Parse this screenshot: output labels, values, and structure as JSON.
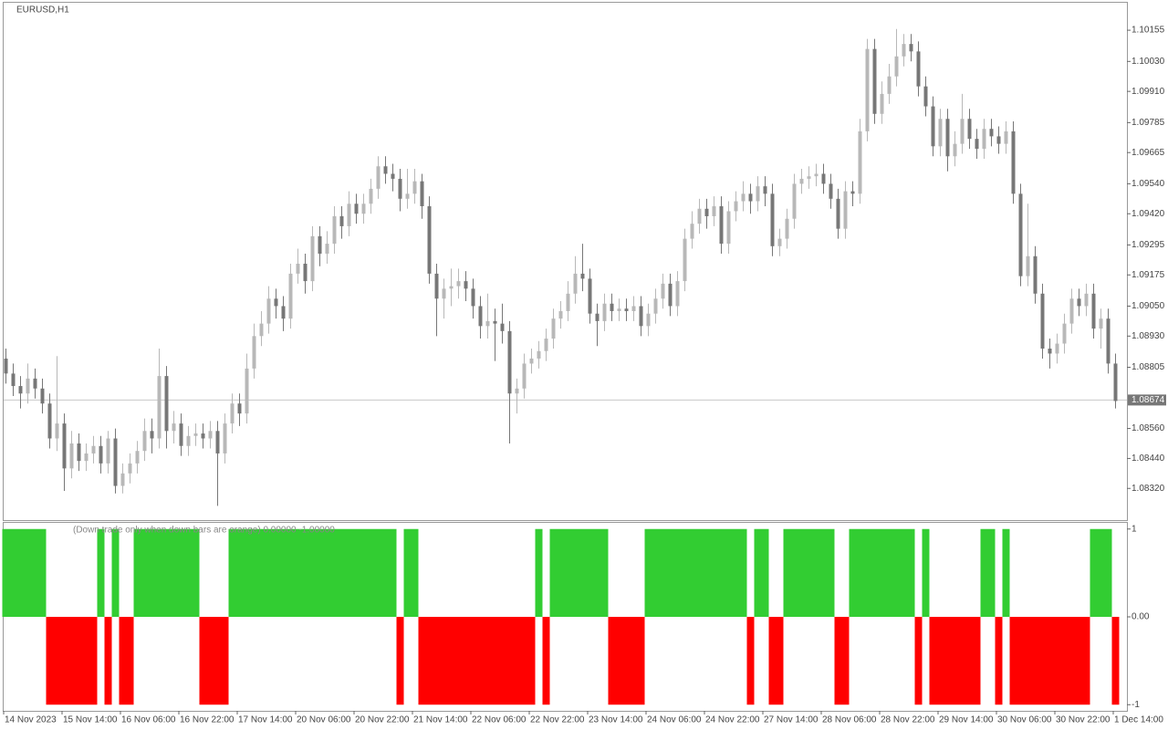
{
  "chart_data": [
    {
      "type": "candlestick",
      "title": "EURUSD,H1",
      "open": [
        1.0884,
        1.0878,
        1.0873,
        1.087,
        1.0876,
        1.0872,
        1.0866,
        1.0852,
        1.0858,
        1.084,
        1.085,
        1.0843,
        1.0846,
        1.0849,
        1.0842,
        1.0852,
        1.0833,
        1.0838,
        1.0842,
        1.0847,
        1.0855,
        1.0852,
        1.0877,
        1.0855,
        1.0858,
        1.0849,
        1.0853,
        1.0854,
        1.0852,
        1.0855,
        1.0846,
        1.0858,
        1.0866,
        1.0862,
        1.088,
        1.0893,
        1.0898,
        1.0908,
        1.0905,
        1.09,
        1.0918,
        1.0922,
        1.0915,
        1.0933,
        1.0926,
        1.093,
        1.0941,
        1.0937,
        1.0946,
        1.0942,
        1.0946,
        1.0952,
        1.0961,
        1.0958,
        1.0956,
        1.0948,
        1.095,
        1.0955,
        1.0945,
        1.0918,
        1.0908,
        1.0912,
        1.0913,
        1.0915,
        1.0912,
        1.0905,
        1.0897,
        1.0899,
        1.0898,
        1.0895,
        1.087,
        1.0872,
        1.0882,
        1.0884,
        1.0887,
        1.0892,
        1.09,
        1.0903,
        1.091,
        1.0918,
        1.0916,
        1.0902,
        1.0899,
        1.0906,
        1.0903,
        1.0904,
        1.0903,
        1.0905,
        1.0897,
        1.0902,
        1.0908,
        1.0914,
        1.0905,
        1.0915,
        1.0932,
        1.0938,
        1.0944,
        1.0941,
        1.0945,
        1.093,
        1.0943,
        1.0947,
        1.095,
        1.0947,
        1.0953,
        1.095,
        1.0929,
        1.0932,
        1.094,
        1.0954,
        1.0956,
        1.0957,
        1.0958,
        1.0954,
        1.0948,
        1.0936,
        1.0951,
        1.095,
        1.0975,
        1.1008,
        1.0982,
        1.099,
        1.0997,
        1.1005,
        1.101,
        1.1007,
        1.0993,
        1.0985,
        1.0969,
        1.098,
        1.0965,
        1.097,
        1.098,
        1.0972,
        1.0968,
        1.0976,
        1.0973,
        1.097,
        1.0975,
        1.095,
        1.0917,
        1.0925,
        1.091,
        1.0888,
        1.0886,
        1.089,
        1.0898,
        1.0908,
        1.0905,
        1.091,
        1.0896,
        1.09,
        1.0882
      ],
      "high": [
        1.0888,
        1.0882,
        1.0877,
        1.0882,
        1.088,
        1.0876,
        1.087,
        1.0885,
        1.0862,
        1.0855,
        1.0854,
        1.085,
        1.0853,
        1.0853,
        1.0855,
        1.0856,
        1.0842,
        1.0846,
        1.0851,
        1.086,
        1.086,
        1.0888,
        1.0881,
        1.0863,
        1.0862,
        1.0857,
        1.0858,
        1.0858,
        1.0859,
        1.0859,
        1.0862,
        1.087,
        1.087,
        1.0886,
        1.0898,
        1.0903,
        1.0913,
        1.0912,
        1.0909,
        1.0922,
        1.0928,
        1.0926,
        1.0937,
        1.0937,
        1.0935,
        1.0945,
        1.0945,
        1.0951,
        1.095,
        1.095,
        1.0956,
        1.0965,
        1.0965,
        1.0962,
        1.096,
        1.096,
        1.096,
        1.0958,
        1.0949,
        1.0922,
        1.0916,
        1.092,
        1.092,
        1.0919,
        1.0916,
        1.0909,
        1.091,
        1.0904,
        1.0906,
        1.0899,
        1.0876,
        1.0886,
        1.0888,
        1.0891,
        1.0896,
        1.0904,
        1.0907,
        1.0915,
        1.0925,
        1.093,
        1.092,
        1.0906,
        1.091,
        1.091,
        1.0908,
        1.0908,
        1.0909,
        1.0909,
        1.0906,
        1.0912,
        1.0918,
        1.0918,
        1.0919,
        1.0936,
        1.0943,
        1.0948,
        1.0948,
        1.0949,
        1.0949,
        1.0947,
        1.0951,
        1.0955,
        1.0954,
        1.0957,
        1.0957,
        1.0954,
        1.0936,
        1.0944,
        1.0958,
        1.096,
        1.0961,
        1.0962,
        1.0962,
        1.0958,
        1.0952,
        1.0955,
        1.0955,
        1.098,
        1.1012,
        1.1012,
        1.0995,
        1.1002,
        1.1016,
        1.1014,
        1.1014,
        1.1011,
        1.0997,
        1.0989,
        1.0984,
        1.0984,
        1.0975,
        1.099,
        1.0984,
        1.0976,
        1.098,
        1.098,
        1.0977,
        1.0979,
        1.0979,
        1.0954,
        1.0946,
        1.0929,
        1.0914,
        1.0892,
        1.0894,
        1.0902,
        1.0912,
        1.0912,
        1.0914,
        1.0914,
        1.0904,
        1.0904,
        1.0886
      ],
      "low": [
        1.0874,
        1.0869,
        1.0864,
        1.0866,
        1.0868,
        1.0862,
        1.0848,
        1.0847,
        1.0831,
        1.0836,
        1.0839,
        1.0839,
        1.0842,
        1.0838,
        1.0838,
        1.083,
        1.083,
        1.0834,
        1.0838,
        1.0843,
        1.0846,
        1.0848,
        1.0848,
        1.085,
        1.0845,
        1.0845,
        1.0849,
        1.0848,
        1.0848,
        1.0825,
        1.0842,
        1.0854,
        1.0857,
        1.0858,
        1.0876,
        1.0889,
        1.0894,
        1.09,
        1.0895,
        1.0896,
        1.0914,
        1.091,
        1.0911,
        1.0921,
        1.0922,
        1.0926,
        1.0932,
        1.0933,
        1.0938,
        1.0938,
        1.0942,
        1.0948,
        1.0954,
        1.0951,
        1.0943,
        1.0944,
        1.0946,
        1.094,
        1.0914,
        1.0893,
        1.09,
        1.0905,
        1.0908,
        1.0907,
        1.09,
        1.0892,
        1.0892,
        1.0883,
        1.089,
        1.085,
        1.0862,
        1.0868,
        1.0878,
        1.088,
        1.0883,
        1.0888,
        1.0896,
        1.0899,
        1.0906,
        1.0911,
        1.0898,
        1.0889,
        1.0895,
        1.0899,
        1.0899,
        1.0899,
        1.0899,
        1.0893,
        1.0893,
        1.0898,
        1.0904,
        1.0901,
        1.0901,
        1.0911,
        1.0928,
        1.0934,
        1.0936,
        1.0937,
        1.0926,
        1.0926,
        1.0939,
        1.0943,
        1.0942,
        1.0943,
        1.0945,
        1.0925,
        1.0925,
        1.0928,
        1.0936,
        1.095,
        1.0952,
        1.0953,
        1.095,
        1.0944,
        1.0932,
        1.0932,
        1.0945,
        1.0946,
        1.0971,
        1.0978,
        1.0978,
        1.0986,
        1.0993,
        1.1001,
        1.1003,
        1.0989,
        1.0981,
        1.0965,
        1.0965,
        1.0959,
        1.0961,
        1.0966,
        1.0968,
        1.0964,
        1.0964,
        1.0969,
        1.0966,
        1.0966,
        1.0946,
        1.0913,
        1.0913,
        1.0906,
        1.0884,
        1.088,
        1.0882,
        1.0886,
        1.0894,
        1.0901,
        1.0901,
        1.0892,
        1.0888,
        1.0878,
        1.0864
      ],
      "close": [
        1.0878,
        1.0873,
        1.087,
        1.0876,
        1.0872,
        1.0866,
        1.0852,
        1.0858,
        1.084,
        1.085,
        1.0843,
        1.0846,
        1.0849,
        1.0842,
        1.0852,
        1.0833,
        1.0838,
        1.0842,
        1.0847,
        1.0855,
        1.0852,
        1.0877,
        1.0855,
        1.0858,
        1.0849,
        1.0853,
        1.0854,
        1.0852,
        1.0855,
        1.0846,
        1.0858,
        1.0866,
        1.0862,
        1.088,
        1.0893,
        1.0898,
        1.0908,
        1.0905,
        1.09,
        1.0918,
        1.0922,
        1.0915,
        1.0933,
        1.0926,
        1.093,
        1.0941,
        1.0937,
        1.0946,
        1.0942,
        1.0946,
        1.0952,
        1.0961,
        1.0958,
        1.0956,
        1.0948,
        1.095,
        1.0955,
        1.0945,
        1.0918,
        1.0908,
        1.0912,
        1.0913,
        1.0915,
        1.0912,
        1.0905,
        1.0897,
        1.0899,
        1.0898,
        1.0895,
        1.087,
        1.0872,
        1.0882,
        1.0884,
        1.0887,
        1.0892,
        1.09,
        1.0903,
        1.091,
        1.0918,
        1.0916,
        1.0902,
        1.0899,
        1.0906,
        1.0903,
        1.0904,
        1.0903,
        1.0905,
        1.0897,
        1.0902,
        1.0908,
        1.0914,
        1.0905,
        1.0915,
        1.0932,
        1.0938,
        1.0944,
        1.0941,
        1.0945,
        1.093,
        1.0943,
        1.0947,
        1.095,
        1.0947,
        1.0953,
        1.095,
        1.0929,
        1.0932,
        1.094,
        1.0954,
        1.0956,
        1.0957,
        1.0958,
        1.0954,
        1.0948,
        1.0936,
        1.0951,
        1.095,
        1.0975,
        1.1008,
        1.0982,
        1.099,
        1.0997,
        1.1005,
        1.101,
        1.1007,
        1.0993,
        1.0985,
        1.0969,
        1.098,
        1.0965,
        1.097,
        1.098,
        1.0972,
        1.0968,
        1.0976,
        1.0973,
        1.097,
        1.0975,
        1.095,
        1.0917,
        1.0925,
        1.091,
        1.0888,
        1.0886,
        1.089,
        1.0898,
        1.0908,
        1.0905,
        1.091,
        1.0896,
        1.09,
        1.0882,
        1.0867
      ],
      "up_color": "#b8b8b8",
      "down_color": "#777777",
      "ylim": [
        1.08193,
        1.10265
      ],
      "yticks": [
        1.10155,
        {
          "value": 1.1003,
          "label": "1.10030"
        },
        {
          "value": 1.0991,
          "label": "1.09910"
        },
        1.09785,
        1.09665,
        {
          "value": 1.0954,
          "label": "1.09540"
        },
        {
          "value": 1.0942,
          "label": "1.09420"
        },
        1.09295,
        1.09175,
        {
          "value": 1.0905,
          "label": "1.09050"
        },
        {
          "value": 1.0893,
          "label": "1.08930"
        },
        1.08805,
        {
          "value": 1.0856,
          "label": "1.08560"
        },
        {
          "value": 1.0844,
          "label": "1.08440"
        },
        {
          "value": 1.0832,
          "label": "1.08320"
        }
      ],
      "last_price": 1.08674,
      "xtick_labels": [
        "14 Nov 2023",
        "15 Nov 14:00",
        "16 Nov 06:00",
        "16 Nov 22:00",
        "17 Nov 14:00",
        "20 Nov 06:00",
        "20 Nov 22:00",
        "21 Nov 14:00",
        "22 Nov 06:00",
        "22 Nov 22:00",
        "23 Nov 14:00",
        "24 Nov 06:00",
        "24 Nov 22:00",
        "27 Nov 14:00",
        "28 Nov 06:00",
        "28 Nov 22:00",
        "29 Nov 14:00",
        "30 Nov 06:00",
        "30 Nov 22:00",
        "1 Dec 14:00"
      ]
    },
    {
      "type": "bar",
      "title": "(Down trade only when down bars are orange) 0.00000 -1.00000",
      "values": [
        1,
        1,
        1,
        1,
        1,
        1,
        -1,
        -1,
        -1,
        -1,
        -1,
        -1,
        -1,
        1,
        -1,
        1,
        -1,
        -1,
        1,
        1,
        1,
        1,
        1,
        1,
        1,
        1,
        1,
        -1,
        -1,
        -1,
        -1,
        1,
        1,
        1,
        1,
        1,
        1,
        1,
        1,
        1,
        1,
        1,
        1,
        1,
        1,
        1,
        1,
        1,
        1,
        1,
        1,
        1,
        1,
        1,
        -1,
        1,
        1,
        -1,
        -1,
        -1,
        -1,
        -1,
        -1,
        -1,
        -1,
        -1,
        -1,
        -1,
        -1,
        -1,
        -1,
        -1,
        -1,
        1,
        -1,
        1,
        1,
        1,
        1,
        1,
        1,
        1,
        1,
        -1,
        -1,
        -1,
        -1,
        -1,
        1,
        1,
        1,
        1,
        1,
        1,
        1,
        1,
        1,
        1,
        1,
        1,
        1,
        1,
        -1,
        1,
        1,
        -1,
        -1,
        1,
        1,
        1,
        1,
        1,
        1,
        1,
        -1,
        -1,
        1,
        1,
        1,
        1,
        1,
        1,
        1,
        1,
        1,
        -1,
        1,
        -1,
        -1,
        -1,
        -1,
        -1,
        -1,
        -1,
        1,
        1,
        -1,
        1,
        -1,
        -1,
        -1,
        -1,
        -1,
        -1,
        -1,
        -1,
        -1,
        -1,
        -1,
        1,
        1,
        1,
        -1
      ],
      "up_color": "#32cd32",
      "down_color": "#ff0000",
      "ylim": [
        -1.07,
        1.07
      ],
      "yticks": [
        1,
        {
          "value": 0,
          "label": "0.00"
        },
        -1
      ]
    }
  ]
}
